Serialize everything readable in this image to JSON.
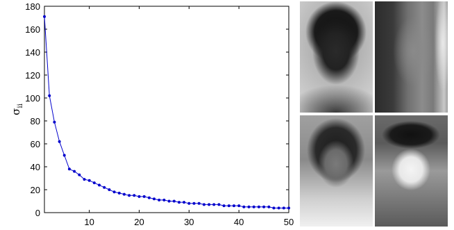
{
  "chart_data": {
    "type": "line",
    "title": "",
    "xlabel": "",
    "ylabel": "σ",
    "ylabel_subscript": "ii",
    "xlim": [
      1,
      50
    ],
    "ylim": [
      0,
      180
    ],
    "xticks": [
      10,
      20,
      30,
      40,
      50
    ],
    "yticks": [
      0,
      20,
      40,
      60,
      80,
      100,
      120,
      140,
      160,
      180
    ],
    "grid": false,
    "line_color": "#0000cc",
    "x": [
      1,
      2,
      3,
      4,
      5,
      6,
      7,
      8,
      9,
      10,
      11,
      12,
      13,
      14,
      15,
      16,
      17,
      18,
      19,
      20,
      21,
      22,
      23,
      24,
      25,
      26,
      27,
      28,
      29,
      30,
      31,
      32,
      33,
      34,
      35,
      36,
      37,
      38,
      39,
      40,
      41,
      42,
      43,
      44,
      45,
      46,
      47,
      48,
      49,
      50
    ],
    "y": [
      171,
      102,
      79,
      62,
      50,
      38,
      36,
      33,
      29,
      28,
      26,
      24,
      22,
      20,
      18,
      17,
      16,
      15,
      15,
      14,
      14,
      13,
      12,
      11,
      11,
      10,
      10,
      9,
      9,
      8,
      8,
      8,
      7,
      7,
      7,
      7,
      6,
      6,
      6,
      6,
      5,
      5,
      5,
      5,
      5,
      5,
      4,
      4,
      4,
      4
    ]
  },
  "images": [
    {
      "name": "eigenface-1",
      "kind": "dark face on light background"
    },
    {
      "name": "eigenface-2",
      "kind": "half-shaded face with bright right edge"
    },
    {
      "name": "eigenface-3",
      "kind": "dark hair, grey face, light lower body"
    },
    {
      "name": "eigenface-4",
      "kind": "bright face with dark hair band"
    }
  ]
}
